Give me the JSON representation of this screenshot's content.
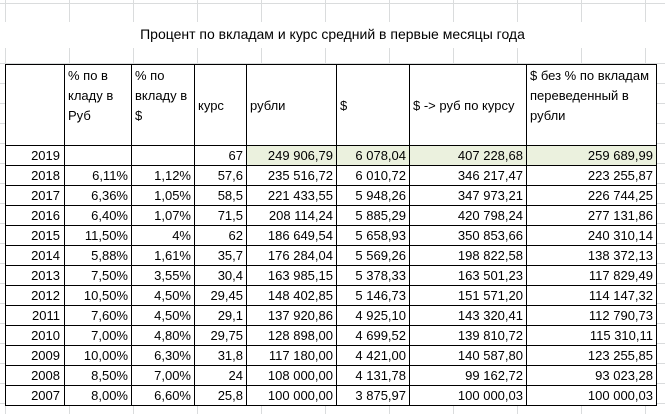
{
  "title": "Процент по вкладам и курс средний в первые месяцы года",
  "headers": [
    "",
    "% по в кладу в Руб",
    "% по вкладу в $",
    "курс",
    "рубли",
    "$",
    "$ -> руб по курсу",
    "$ без % по вкладам переведенный в рубли"
  ],
  "rows": [
    [
      "2019",
      "",
      "",
      "67",
      "249 906,79",
      "6 078,04",
      "407 228,68",
      "259 689,99"
    ],
    [
      "2018",
      "6,11%",
      "1,12%",
      "57,6",
      "235 516,72",
      "6 010,72",
      "346 217,47",
      "223 255,87"
    ],
    [
      "2017",
      "6,36%",
      "1,05%",
      "58,5",
      "221 433,55",
      "5 948,26",
      "347 973,21",
      "226 744,25"
    ],
    [
      "2016",
      "6,40%",
      "1,07%",
      "71,5",
      "208 114,24",
      "5 885,29",
      "420 798,24",
      "277 131,86"
    ],
    [
      "2015",
      "11,50%",
      "4%",
      "62",
      "186 649,54",
      "5 658,93",
      "350 853,66",
      "240 310,14"
    ],
    [
      "2014",
      "5,88%",
      "1,61%",
      "35,7",
      "176 284,04",
      "5 569,26",
      "198 822,58",
      "138 372,13"
    ],
    [
      "2013",
      "7,50%",
      "3,55%",
      "30,4",
      "163 985,15",
      "5 378,33",
      "163 501,23",
      "117 829,49"
    ],
    [
      "2012",
      "10,50%",
      "4,50%",
      "29,45",
      "148 402,85",
      "5 146,73",
      "151 571,20",
      "114 147,32"
    ],
    [
      "2011",
      "7,60%",
      "4,50%",
      "29,1",
      "137 920,86",
      "4 925,10",
      "143 320,41",
      "112 790,73"
    ],
    [
      "2010",
      "7,00%",
      "4,80%",
      "29,75",
      "128 898,00",
      "4 699,52",
      "139 810,72",
      "115 310,11"
    ],
    [
      "2009",
      "10,00%",
      "6,30%",
      "31,8",
      "117 180,00",
      "4 421,00",
      "140 587,80",
      "123 255,85"
    ],
    [
      "2008",
      "8,50%",
      "7,00%",
      "24",
      "108 000,00",
      "4 131,78",
      "99 162,72",
      "93 023,28"
    ],
    [
      "2007",
      "8,00%",
      "6,60%",
      "25,8",
      "100 000,00",
      "3 875,97",
      "100 000,03",
      "100 000,03"
    ]
  ],
  "highlight_color": "#ebf1de"
}
